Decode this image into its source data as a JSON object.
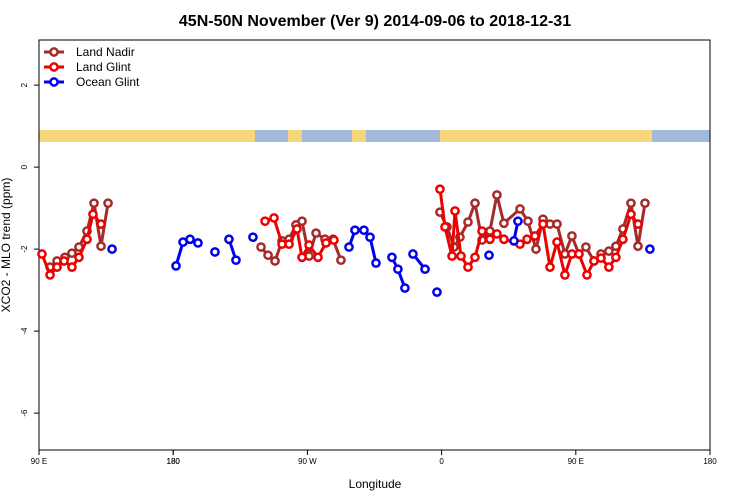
{
  "chart_data": {
    "type": "line",
    "title": "45N-50N November (Ver 9)   2014-09-06 to 2018-12-31",
    "x_label": "Longitude",
    "y_label": "XCO2 - MLO trend (ppm)",
    "xlim": [
      90,
      540
    ],
    "xticks": [
      {
        "value": 90,
        "label": "90 E"
      },
      180,
      {
        "value": 270,
        "label": "90 W"
      },
      {
        "value": 360,
        "label": "0"
      },
      {
        "value": 450,
        "label": "90 E"
      },
      180,
      {
        "value": 540,
        "label": "180"
      }
    ],
    "ylim": [
      -6.9,
      3.1
    ],
    "yticks": [
      -6,
      -4,
      -2,
      0,
      2
    ],
    "legend": "top-left",
    "series": [
      {
        "name": "Land Nadir",
        "color": "#a52a2a",
        "x": [
          97.4,
          102.1,
          107.4,
          112.1,
          116.8,
          122.2,
          126.9,
          131.6,
          136.3,
          null,
          238.9,
          243.6,
          248.3,
          253.0,
          257.7,
          262.3,
          266.4,
          271.1,
          275.8,
          281.8,
          287.2,
          292.5,
          null,
          358.9,
          363.6,
          368.3,
          372.3,
          377.7,
          382.4,
          387.1,
          392.4,
          397.1,
          401.8,
          412.6,
          417.9,
          423.3,
          428.0,
          432.7,
          437.4,
          442.7,
          447.4,
          452.1,
          456.8,
          462.2,
          466.9,
          472.2,
          476.9,
          481.6,
          487.0,
          491.7,
          496.4
        ],
        "values": [
          -2.44,
          -2.29,
          -2.2,
          -2.1,
          -1.95,
          -1.56,
          -0.88,
          -1.93,
          -0.88,
          null,
          -1.95,
          -2.15,
          -2.29,
          -1.8,
          -1.76,
          -1.41,
          -1.32,
          -2.17,
          -1.61,
          -1.76,
          -1.76,
          -2.27,
          null,
          -1.1,
          -1.46,
          -1.95,
          -1.71,
          -1.34,
          -0.88,
          -1.78,
          -1.56,
          -0.68,
          -1.37,
          -1.02,
          -1.32,
          -2.0,
          -1.27,
          -1.39,
          -1.39,
          -2.12,
          -1.68,
          -2.12,
          -1.95,
          -2.29,
          -2.12,
          -2.05,
          -1.93,
          -1.51,
          -0.88,
          -1.93,
          -0.88
        ]
      },
      {
        "name": "Land Glint",
        "color": "#ee0000",
        "x": [
          92.0,
          97.4,
          102.1,
          106.8,
          112.1,
          116.8,
          122.2,
          126.2,
          131.6,
          null,
          241.6,
          247.6,
          253.0,
          257.7,
          263.0,
          266.4,
          271.1,
          277.1,
          282.5,
          287.8,
          null,
          358.9,
          362.3,
          367.0,
          369.0,
          373.0,
          377.7,
          382.4,
          387.1,
          392.4,
          397.1,
          401.8,
          412.6,
          417.3,
          422.6,
          428.0,
          432.7,
          437.4,
          442.7,
          447.4,
          452.1,
          457.5,
          462.2,
          466.9,
          472.2,
          476.9,
          481.6,
          487.0,
          491.7
        ],
        "values": [
          -2.12,
          -2.63,
          -2.44,
          -2.29,
          -2.44,
          -2.2,
          -1.76,
          -1.15,
          -1.39,
          null,
          -1.32,
          -1.24,
          -1.88,
          -1.88,
          -1.51,
          -2.2,
          -1.9,
          -2.2,
          -1.85,
          -1.78,
          null,
          -0.54,
          -1.46,
          -2.17,
          -1.07,
          -2.17,
          -2.44,
          -2.2,
          -1.56,
          -1.76,
          -1.63,
          -1.76,
          -1.88,
          -1.76,
          -1.68,
          -1.39,
          -2.44,
          -1.83,
          -2.63,
          -2.12,
          -2.12,
          -2.63,
          -2.29,
          -2.22,
          -2.44,
          -2.2,
          -1.76,
          -1.15,
          -1.39
        ]
      },
      {
        "name": "Ocean Glint",
        "color": "#0000ee",
        "x": [
          139.0,
          null,
          181.9,
          186.6,
          191.3,
          196.6,
          null,
          208.0,
          null,
          217.4,
          222.1,
          null,
          233.5,
          null,
          297.9,
          301.9,
          307.9,
          312.0,
          316.0,
          null,
          326.7,
          330.7,
          335.4,
          null,
          340.8,
          348.9,
          null,
          356.9,
          null,
          391.8,
          null,
          408.5,
          411.2,
          null,
          499.7
        ],
        "values": [
          -2.0,
          null,
          -2.41,
          -1.83,
          -1.76,
          -1.85,
          null,
          -2.07,
          null,
          -1.76,
          -2.27,
          null,
          -1.71,
          null,
          -1.95,
          -1.54,
          -1.54,
          -1.71,
          -2.34,
          null,
          -2.2,
          -2.49,
          -2.95,
          null,
          -2.12,
          -2.49,
          null,
          -3.05,
          null,
          -2.15,
          null,
          -1.8,
          -1.32,
          null,
          -2.0
        ]
      }
    ]
  }
}
